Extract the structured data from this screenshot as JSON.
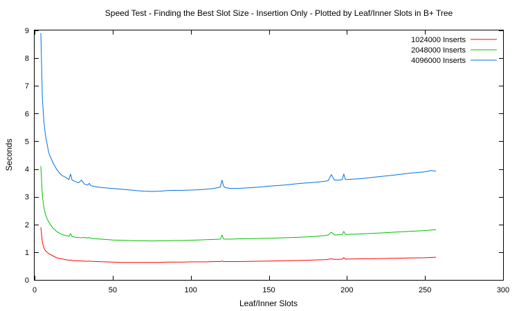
{
  "chart_data": {
    "type": "line",
    "title": "Speed Test - Finding the Best Slot Size - Insertion Only - Plotted by Leaf/Inner Slots in B+ Tree",
    "xlabel": "Leaf/Inner Slots",
    "ylabel": "Seconds",
    "xlim": [
      0,
      300
    ],
    "ylim": [
      0,
      9
    ],
    "xticks": [
      0,
      50,
      100,
      150,
      200,
      250,
      300
    ],
    "yticks": [
      0,
      1,
      2,
      3,
      4,
      5,
      6,
      7,
      8,
      9
    ],
    "grid": false,
    "legend_position": "top-right",
    "x": [
      4,
      5,
      6,
      7,
      8,
      9,
      10,
      12,
      14,
      16,
      18,
      20,
      22,
      23,
      24,
      26,
      28,
      30,
      32,
      34,
      35,
      36,
      40,
      45,
      50,
      55,
      60,
      65,
      70,
      75,
      80,
      85,
      90,
      95,
      100,
      105,
      110,
      115,
      119,
      120,
      121,
      122,
      125,
      130,
      140,
      150,
      160,
      170,
      180,
      186,
      188,
      190,
      192,
      195,
      197,
      198,
      199,
      200,
      210,
      220,
      230,
      240,
      250,
      254,
      257
    ],
    "series": [
      {
        "name": "1024000 Inserts",
        "color": "#ff0000",
        "values": [
          1.9,
          1.35,
          1.15,
          1.05,
          1.0,
          0.95,
          0.92,
          0.86,
          0.8,
          0.77,
          0.75,
          0.73,
          0.71,
          0.72,
          0.7,
          0.69,
          0.69,
          0.68,
          0.68,
          0.67,
          0.68,
          0.67,
          0.66,
          0.65,
          0.64,
          0.63,
          0.63,
          0.63,
          0.63,
          0.63,
          0.63,
          0.64,
          0.64,
          0.64,
          0.65,
          0.65,
          0.65,
          0.66,
          0.66,
          0.68,
          0.66,
          0.66,
          0.66,
          0.66,
          0.67,
          0.68,
          0.69,
          0.7,
          0.72,
          0.73,
          0.74,
          0.76,
          0.74,
          0.74,
          0.75,
          0.8,
          0.75,
          0.75,
          0.76,
          0.77,
          0.78,
          0.79,
          0.8,
          0.81,
          0.82
        ]
      },
      {
        "name": "2048000 Inserts",
        "color": "#00c000",
        "values": [
          4.1,
          3.0,
          2.6,
          2.35,
          2.2,
          2.1,
          2.0,
          1.85,
          1.75,
          1.68,
          1.63,
          1.6,
          1.57,
          1.67,
          1.56,
          1.54,
          1.53,
          1.52,
          1.53,
          1.51,
          1.53,
          1.5,
          1.48,
          1.46,
          1.44,
          1.43,
          1.42,
          1.41,
          1.41,
          1.4,
          1.41,
          1.41,
          1.42,
          1.42,
          1.43,
          1.44,
          1.45,
          1.46,
          1.47,
          1.62,
          1.48,
          1.47,
          1.47,
          1.48,
          1.49,
          1.5,
          1.52,
          1.54,
          1.57,
          1.6,
          1.62,
          1.72,
          1.62,
          1.63,
          1.64,
          1.75,
          1.64,
          1.64,
          1.66,
          1.69,
          1.72,
          1.75,
          1.78,
          1.8,
          1.81
        ]
      },
      {
        "name": "4096000 Inserts",
        "color": "#0070e0",
        "values": [
          8.9,
          6.5,
          5.7,
          5.2,
          4.9,
          4.6,
          4.45,
          4.2,
          4.0,
          3.85,
          3.75,
          3.7,
          3.62,
          3.82,
          3.6,
          3.55,
          3.5,
          3.6,
          3.45,
          3.42,
          3.48,
          3.4,
          3.35,
          3.32,
          3.3,
          3.27,
          3.25,
          3.22,
          3.2,
          3.19,
          3.2,
          3.22,
          3.23,
          3.23,
          3.24,
          3.25,
          3.27,
          3.3,
          3.35,
          3.6,
          3.38,
          3.33,
          3.3,
          3.3,
          3.33,
          3.38,
          3.42,
          3.48,
          3.52,
          3.56,
          3.58,
          3.8,
          3.6,
          3.6,
          3.62,
          3.82,
          3.62,
          3.62,
          3.66,
          3.72,
          3.78,
          3.85,
          3.9,
          3.95,
          3.92
        ]
      }
    ]
  }
}
